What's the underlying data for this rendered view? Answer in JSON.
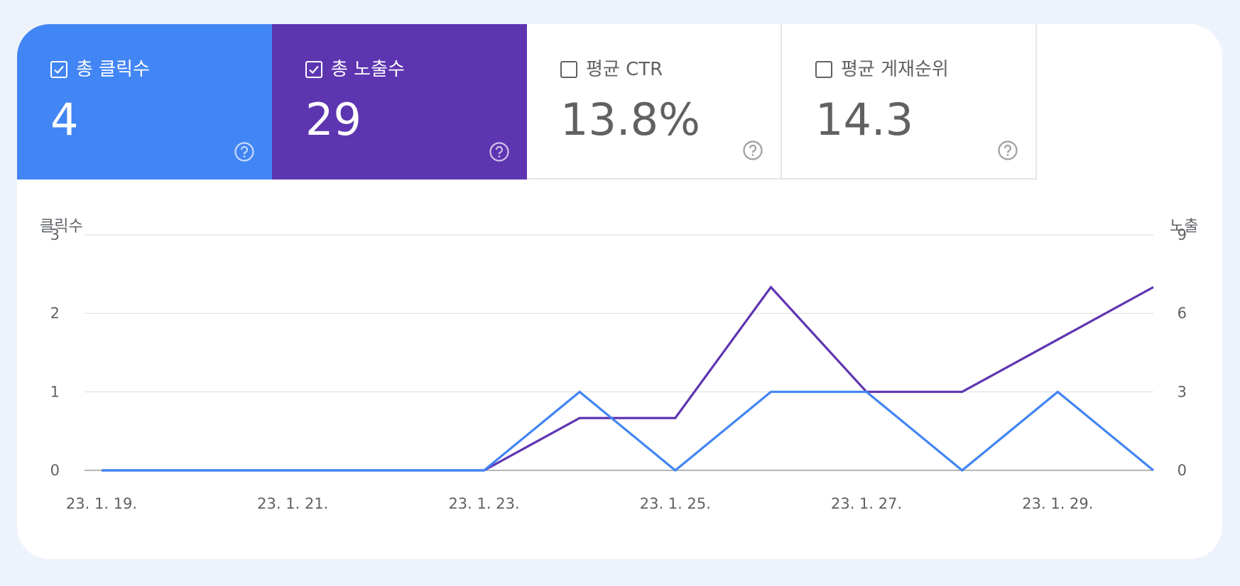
{
  "metrics": [
    {
      "id": "clicks",
      "label": "총 클릭수",
      "value": "4",
      "checked": true,
      "bg": "#4285f4",
      "fg": "#ffffff"
    },
    {
      "id": "impressions",
      "label": "총 노출수",
      "value": "29",
      "checked": true,
      "bg": "#5e35b1",
      "fg": "#ffffff"
    },
    {
      "id": "ctr",
      "label": "평균 CTR",
      "value": "13.8%",
      "checked": false,
      "bg": "#ffffff",
      "fg": "#616161"
    },
    {
      "id": "position",
      "label": "평균 게재순위",
      "value": "14.3",
      "checked": false,
      "bg": "#ffffff",
      "fg": "#616161"
    }
  ],
  "colors": {
    "clicks": "#4285f4",
    "impressions": "#5e35b1",
    "grid": "#e0e0e0",
    "axis": "#9e9e9e",
    "tick": "#616161"
  },
  "icons": {
    "checkbox_checked": "checked-checkbox-icon",
    "checkbox_empty": "empty-checkbox-icon",
    "help": "help-circle-icon"
  },
  "chart_data": {
    "type": "line",
    "left_axis_label": "클릭수",
    "right_axis_label": "노출",
    "left_ticks": [
      "0",
      "1",
      "2",
      "3"
    ],
    "right_ticks": [
      "0",
      "3",
      "6",
      "9"
    ],
    "y_left_lim": [
      0,
      3
    ],
    "y_right_lim": [
      0,
      9
    ],
    "x": [
      "23. 1. 19.",
      "23. 1. 20.",
      "23. 1. 21.",
      "23. 1. 22.",
      "23. 1. 23.",
      "23. 1. 24.",
      "23. 1. 25.",
      "23. 1. 26.",
      "23. 1. 27.",
      "23. 1. 28.",
      "23. 1. 29.",
      "23. 1. 30."
    ],
    "x_tick_labels": [
      "23. 1. 19.",
      "23. 1. 21.",
      "23. 1. 23.",
      "23. 1. 25.",
      "23. 1. 27.",
      "23. 1. 29."
    ],
    "x_tick_indices": [
      0,
      2,
      4,
      6,
      8,
      10
    ],
    "grid": true,
    "series": [
      {
        "id": "impressions",
        "axis": "right",
        "values": [
          0,
          0,
          0,
          0,
          0,
          2,
          2,
          7,
          3,
          3,
          5,
          7
        ]
      },
      {
        "id": "clicks",
        "axis": "left",
        "values": [
          0,
          0,
          0,
          0,
          0,
          1,
          0,
          1,
          1,
          0,
          1,
          0
        ]
      }
    ]
  }
}
